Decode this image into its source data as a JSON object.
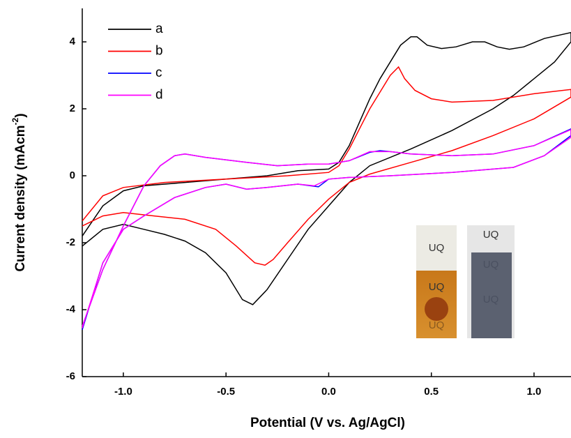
{
  "chart_data": {
    "type": "line",
    "x_label": "Potential (V vs. Ag/AgCl)",
    "y_label": {
      "text": "Current density (mAcm",
      "superscript": "-2",
      "close": ")"
    },
    "xlim": [
      -1.2,
      1.18
    ],
    "ylim": [
      -6,
      5
    ],
    "xticks": [
      {
        "value": -1.0,
        "label": "-1.0"
      },
      -0.5,
      {
        "value": 0.0,
        "label": "0.0"
      },
      0.5,
      {
        "value": 1.0,
        "label": "1.0"
      }
    ],
    "yticks": [
      -6,
      -4,
      -2,
      0,
      2,
      4
    ],
    "legend": "top-left",
    "series": [
      {
        "name": "a",
        "color": "#000000",
        "x": [
          -1.2,
          -1.1,
          -1.0,
          -0.9,
          -0.7,
          -0.5,
          -0.3,
          -0.15,
          0.0,
          0.05,
          0.1,
          0.15,
          0.2,
          0.25,
          0.3,
          0.35,
          0.4,
          0.43,
          0.48,
          0.55,
          0.62,
          0.7,
          0.76,
          0.82,
          0.88,
          0.95,
          1.05,
          1.18,
          1.18,
          1.1,
          1.0,
          0.9,
          0.8,
          0.6,
          0.4,
          0.2,
          0.1,
          0.0,
          -0.1,
          -0.2,
          -0.3,
          -0.37,
          -0.42,
          -0.5,
          -0.6,
          -0.7,
          -0.8,
          -0.9,
          -1.0,
          -1.1,
          -1.2
        ],
        "values": [
          -1.8,
          -0.9,
          -0.45,
          -0.3,
          -0.2,
          -0.1,
          0.0,
          0.15,
          0.2,
          0.4,
          0.9,
          1.6,
          2.3,
          2.9,
          3.4,
          3.9,
          4.15,
          4.15,
          3.9,
          3.8,
          3.85,
          4.0,
          4.0,
          3.85,
          3.78,
          3.85,
          4.1,
          4.28,
          4.0,
          3.4,
          2.9,
          2.4,
          2.0,
          1.35,
          0.8,
          0.3,
          -0.2,
          -0.9,
          -1.6,
          -2.5,
          -3.4,
          -3.85,
          -3.7,
          -2.9,
          -2.3,
          -1.95,
          -1.75,
          -1.6,
          -1.45,
          -1.6,
          -2.1
        ]
      },
      {
        "name": "b",
        "color": "#ff0000",
        "x": [
          -1.2,
          -1.1,
          -1.0,
          -0.8,
          -0.5,
          -0.2,
          0.0,
          0.05,
          0.1,
          0.15,
          0.2,
          0.25,
          0.3,
          0.34,
          0.37,
          0.42,
          0.5,
          0.6,
          0.8,
          1.0,
          1.18,
          1.18,
          1.0,
          0.8,
          0.6,
          0.4,
          0.2,
          0.1,
          0.0,
          -0.1,
          -0.2,
          -0.27,
          -0.31,
          -0.36,
          -0.45,
          -0.55,
          -0.7,
          -0.85,
          -1.0,
          -1.1,
          -1.2
        ],
        "values": [
          -1.35,
          -0.6,
          -0.35,
          -0.2,
          -0.1,
          0.0,
          0.1,
          0.3,
          0.8,
          1.4,
          2.0,
          2.5,
          3.0,
          3.25,
          2.9,
          2.55,
          2.3,
          2.2,
          2.25,
          2.45,
          2.58,
          2.35,
          1.7,
          1.2,
          0.75,
          0.4,
          0.05,
          -0.2,
          -0.7,
          -1.3,
          -2.0,
          -2.5,
          -2.67,
          -2.6,
          -2.1,
          -1.6,
          -1.3,
          -1.2,
          -1.1,
          -1.2,
          -1.5
        ]
      },
      {
        "name": "c",
        "color": "#0000ff",
        "x": [
          -1.2,
          -1.1,
          -1.0,
          -0.9,
          -0.82,
          -0.75,
          -0.7,
          -0.6,
          -0.4,
          -0.25,
          -0.1,
          0.0,
          0.1,
          0.2,
          0.25,
          0.3,
          0.4,
          0.6,
          0.8,
          1.0,
          1.18,
          1.18,
          1.05,
          0.9,
          0.6,
          0.3,
          0.1,
          0.0,
          -0.05,
          -0.15,
          -0.3,
          -0.4,
          -0.5,
          -0.6,
          -0.75,
          -0.9,
          -1.0,
          -1.1,
          -1.2
        ],
        "values": [
          -4.5,
          -2.8,
          -1.5,
          -0.3,
          0.3,
          0.6,
          0.65,
          0.55,
          0.4,
          0.3,
          0.35,
          0.35,
          0.45,
          0.7,
          0.75,
          0.72,
          0.65,
          0.6,
          0.65,
          0.9,
          1.4,
          1.2,
          0.6,
          0.25,
          0.1,
          0.0,
          -0.05,
          -0.1,
          -0.33,
          -0.25,
          -0.35,
          -0.4,
          -0.25,
          -0.35,
          -0.65,
          -1.2,
          -1.6,
          -2.6,
          -4.6
        ]
      },
      {
        "name": "d",
        "color": "#ff00ff",
        "x": [
          -1.2,
          -1.1,
          -1.0,
          -0.9,
          -0.82,
          -0.75,
          -0.7,
          -0.6,
          -0.4,
          -0.25,
          -0.1,
          0.0,
          0.1,
          0.2,
          0.3,
          0.4,
          0.6,
          0.8,
          1.0,
          1.18,
          1.18,
          1.05,
          0.9,
          0.6,
          0.3,
          0.1,
          0.0,
          -0.07,
          -0.15,
          -0.3,
          -0.4,
          -0.5,
          -0.6,
          -0.75,
          -0.9,
          -1.0,
          -1.1,
          -1.2
        ],
        "values": [
          -4.5,
          -2.8,
          -1.5,
          -0.3,
          0.3,
          0.6,
          0.65,
          0.55,
          0.4,
          0.3,
          0.35,
          0.35,
          0.45,
          0.72,
          0.72,
          0.65,
          0.6,
          0.65,
          0.9,
          1.38,
          1.15,
          0.6,
          0.25,
          0.1,
          0.0,
          -0.05,
          -0.1,
          -0.3,
          -0.25,
          -0.35,
          -0.4,
          -0.25,
          -0.35,
          -0.65,
          -1.2,
          -1.6,
          -2.6,
          -4.55
        ]
      }
    ],
    "inset_labels": [
      "UQ",
      "UQ",
      "UQ",
      "UQ",
      "UQ",
      "UQ"
    ]
  }
}
